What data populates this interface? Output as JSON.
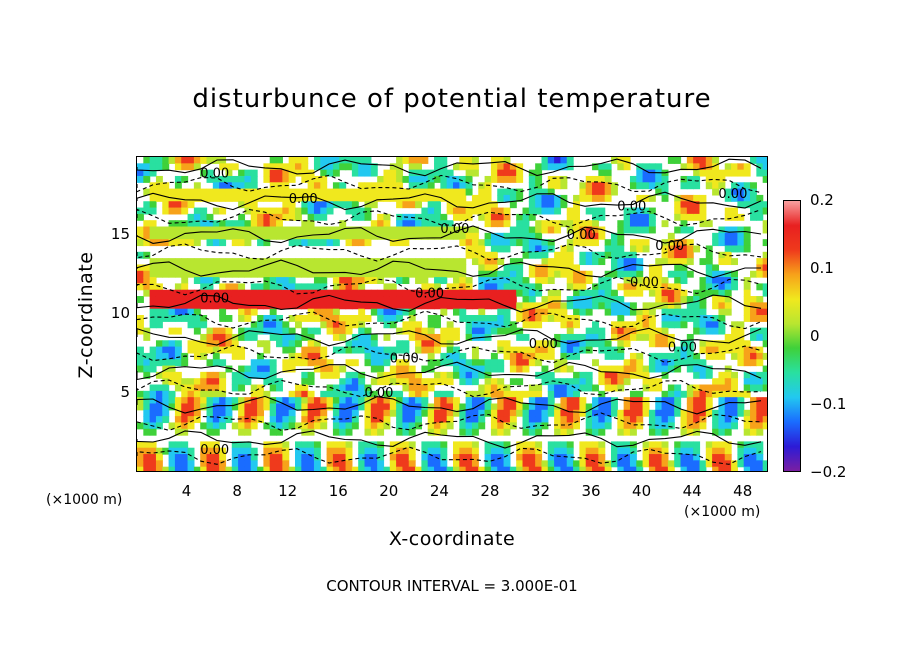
{
  "chart_data": {
    "type": "heatmap",
    "title": "disturbunce of potential temperature",
    "xlabel": "X-coordinate",
    "ylabel": "Z-coordinate",
    "x_unit_label": "(×1000 m)",
    "y_unit_label": "(×1000 m)",
    "xlim": [
      0,
      50
    ],
    "ylim": [
      0,
      20
    ],
    "x_ticks": [
      4,
      8,
      12,
      16,
      20,
      24,
      28,
      32,
      36,
      40,
      44,
      48
    ],
    "y_ticks": [
      5,
      10,
      15
    ],
    "colorbar": {
      "range": [
        -0.2,
        0.2
      ],
      "tick_labels": [
        "0.2",
        "0.1",
        "0",
        "−0.1",
        "−0.2"
      ],
      "tick_values": [
        0.2,
        0.1,
        0,
        -0.1,
        -0.2
      ]
    },
    "contour_labels": [
      "0.00"
    ],
    "footer": "CONTOUR INTERVAL = 3.000E-01",
    "colors": {
      "colormap": [
        "#7a1fa2",
        "#2c1bd6",
        "#1a6cff",
        "#22c8f0",
        "#29e0a0",
        "#3fd13a",
        "#b8e630",
        "#f0e81e",
        "#f7a21a",
        "#ef3a1c",
        "#e82020",
        "#f8a0a0"
      ]
    },
    "bands": [
      {
        "y": 17.6,
        "value": 0.04
      },
      {
        "y": 15.2,
        "value": 0.03
      },
      {
        "y": 13.8,
        "value": 0.02
      },
      {
        "y": 12.9,
        "value": 0.03
      },
      {
        "y": 11.0,
        "value": 0.18
      }
    ]
  }
}
